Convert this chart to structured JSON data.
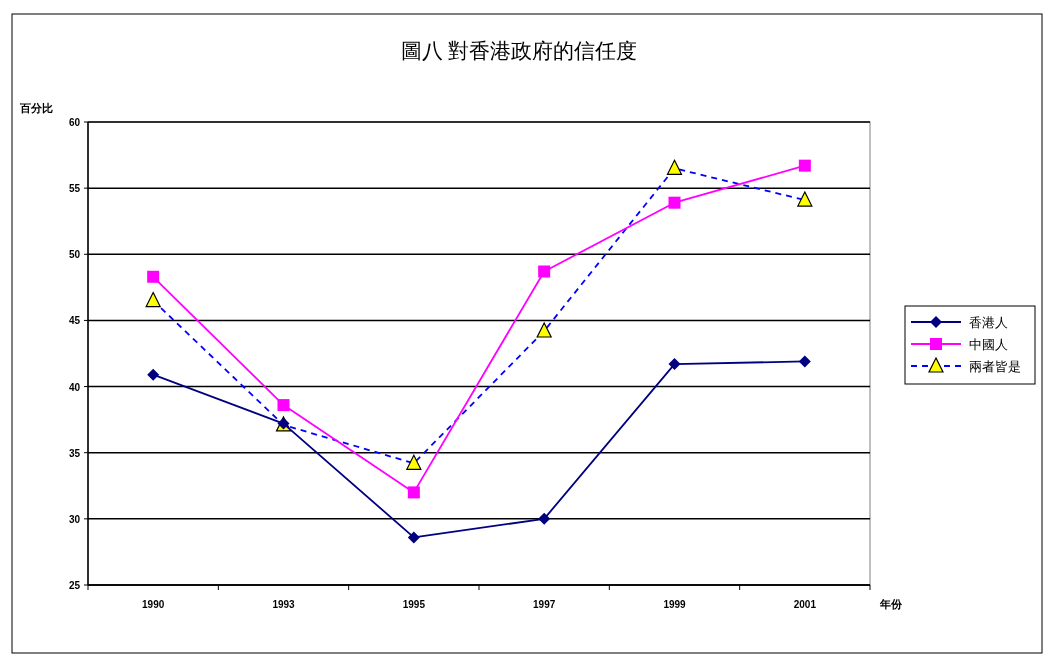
{
  "chart_data": {
    "type": "line",
    "title": "圖八 對香港政府的信任度",
    "xlabel": "年份",
    "ylabel": "百分比",
    "categories": [
      "1990",
      "1993",
      "1995",
      "1997",
      "1999",
      "2001"
    ],
    "series": [
      {
        "name": "香港人",
        "color": "#000080",
        "marker": "diamond",
        "line_style": "solid",
        "values": [
          40.9,
          37.2,
          28.6,
          30.0,
          41.7,
          41.9
        ]
      },
      {
        "name": "中國人",
        "color": "#ff00ff",
        "marker": "square",
        "line_style": "solid",
        "values": [
          48.3,
          38.6,
          32.0,
          48.7,
          53.9,
          56.7
        ]
      },
      {
        "name": "兩者皆是",
        "color": "#0000ff",
        "marker": "triangle",
        "line_style": "dashed",
        "values": [
          46.5,
          37.1,
          34.2,
          44.2,
          56.5,
          54.1
        ]
      }
    ],
    "ylim": [
      25,
      60
    ],
    "yticks": [
      25,
      30,
      35,
      40,
      45,
      50,
      55,
      60
    ],
    "grid": "y",
    "legend": "right"
  }
}
